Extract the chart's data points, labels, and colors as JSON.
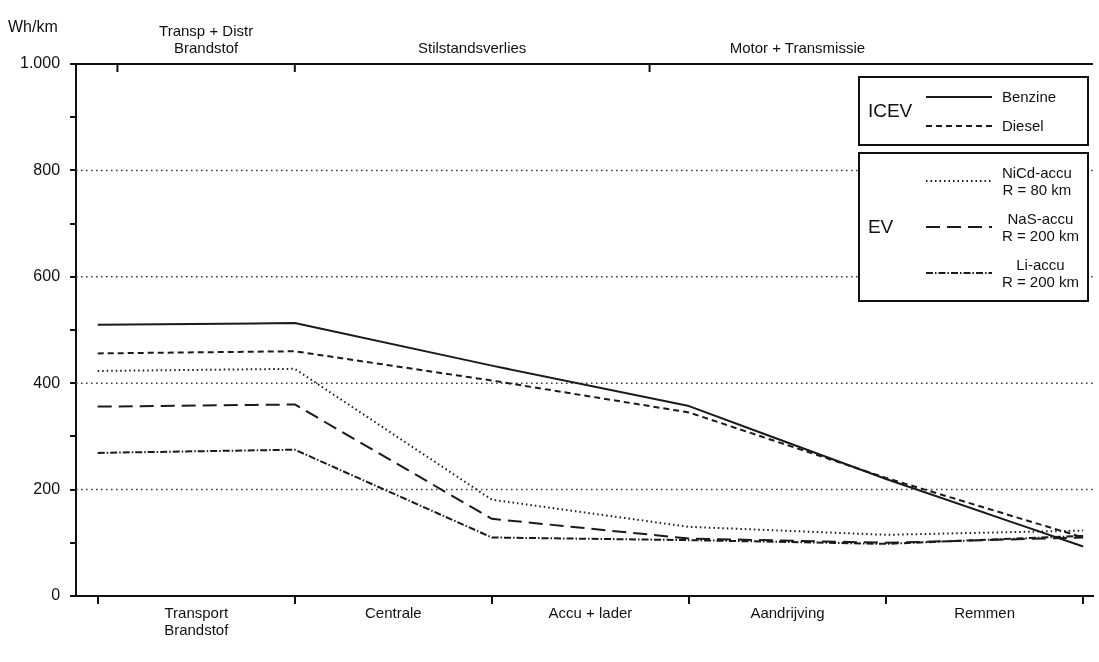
{
  "chart_data": {
    "type": "line",
    "ylabel": "Wh/km",
    "categories": [
      null,
      null,
      null,
      null,
      null,
      null
    ],
    "ylim": [
      0,
      1000
    ],
    "yticks": [
      0,
      {
        "value": 100,
        "label": null
      },
      200,
      {
        "value": 300,
        "label": null
      },
      400,
      {
        "value": 500,
        "label": null
      },
      600,
      {
        "value": 700,
        "label": null
      },
      800,
      {
        "value": 900,
        "label": null
      },
      {
        "value": 1000,
        "label": "1.000"
      }
    ],
    "grid": "y",
    "legend": "top right",
    "marker": "none",
    "annotations": [
      "ICEV",
      "EV",
      "Transport\nBrandstof",
      "Centrale",
      "Accu + lader",
      "Aandrijving",
      "Remmen",
      "Transp + Distr\nBrandstof",
      "Stilstandsverlies",
      "Motor + Transmissie"
    ],
    "series": [
      {
        "name": "Benzine",
        "color": "#1a1a1a",
        "line_style": "solid",
        "values": [
          510,
          513,
          433,
          357,
          220,
          93
        ]
      },
      {
        "name": "Diesel",
        "color": "#1a1a1a",
        "line_style": "dashed",
        "values": [
          456,
          460,
          405,
          345,
          222,
          110
        ]
      },
      {
        "name": "NiCd-accu\nR = 80 km",
        "color": "#1a1a1a",
        "line_style": "dotted",
        "values": [
          423,
          427,
          181,
          130,
          115,
          123
        ]
      },
      {
        "name": "NaS-accu\nR = 200 km",
        "color": "#1a1a1a",
        "line_style": "longdash",
        "values": [
          356,
          360,
          145,
          108,
          100,
          110
        ]
      },
      {
        "name": "Li-accu\nR = 200 km",
        "color": "#1a1a1a",
        "line_style": "dashdot",
        "values": [
          269,
          275,
          110,
          105,
          98,
          113
        ]
      }
    ]
  }
}
